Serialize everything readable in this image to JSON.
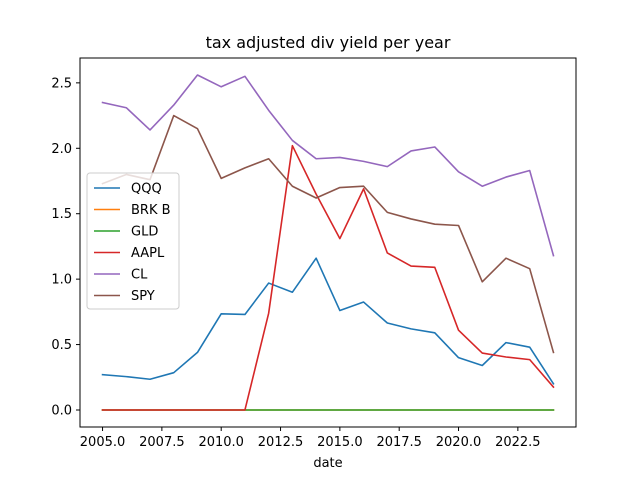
{
  "chart_data": {
    "type": "line",
    "title": "tax adjusted div yield per year",
    "xlabel": "date",
    "ylabel": "",
    "xlim": [
      2004.05,
      2024.95
    ],
    "ylim": [
      -0.13,
      2.69
    ],
    "xticks": [
      2005.0,
      2007.5,
      2010.0,
      2012.5,
      2015.0,
      2017.5,
      2020.0,
      2022.5
    ],
    "xtick_labels": [
      "2005.0",
      "2007.5",
      "2010.0",
      "2012.5",
      "2015.0",
      "2017.5",
      "2020.0",
      "2022.5"
    ],
    "yticks": [
      0.0,
      0.5,
      1.0,
      1.5,
      2.0,
      2.5
    ],
    "ytick_labels": [
      "0.0",
      "0.5",
      "1.0",
      "1.5",
      "2.0",
      "2.5"
    ],
    "grid": false,
    "legend_position": "center-left",
    "x": [
      2005,
      2006,
      2007,
      2008,
      2009,
      2010,
      2011,
      2012,
      2013,
      2014,
      2015,
      2016,
      2017,
      2018,
      2019,
      2020,
      2021,
      2022,
      2023,
      2024
    ],
    "series": [
      {
        "name": "QQQ",
        "color": "#1f77b4",
        "values": [
          0.27,
          0.255,
          0.235,
          0.285,
          0.44,
          0.735,
          0.73,
          0.97,
          0.9,
          1.16,
          0.76,
          0.825,
          0.665,
          0.62,
          0.59,
          0.4,
          0.34,
          0.515,
          0.48,
          0.2
        ]
      },
      {
        "name": "BRK B",
        "color": "#ff7f0e",
        "values": [
          0,
          0,
          0,
          0,
          0,
          0,
          0,
          0,
          0,
          0,
          0,
          0,
          0,
          0,
          0,
          0,
          0,
          0,
          0,
          0
        ]
      },
      {
        "name": "GLD",
        "color": "#2ca02c",
        "values": [
          0,
          0,
          0,
          0,
          0,
          0,
          0,
          0,
          0,
          0,
          0,
          0,
          0,
          0,
          0,
          0,
          0,
          0,
          0,
          0
        ]
      },
      {
        "name": "AAPL",
        "color": "#d62728",
        "values": [
          0,
          0,
          0,
          0,
          0,
          0,
          0,
          0.74,
          2.02,
          1.65,
          1.31,
          1.69,
          1.2,
          1.1,
          1.09,
          0.61,
          0.435,
          0.405,
          0.385,
          0.175
        ]
      },
      {
        "name": "CL",
        "color": "#9467bd",
        "values": [
          2.35,
          2.31,
          2.14,
          2.33,
          2.56,
          2.47,
          2.55,
          2.29,
          2.06,
          1.92,
          1.93,
          1.9,
          1.86,
          1.98,
          2.01,
          1.82,
          1.71,
          1.78,
          1.83,
          1.18
        ]
      },
      {
        "name": "SPY",
        "color": "#8c564b",
        "values": [
          1.73,
          1.8,
          1.76,
          2.25,
          2.15,
          1.77,
          1.85,
          1.92,
          1.71,
          1.62,
          1.7,
          1.71,
          1.51,
          1.46,
          1.42,
          1.41,
          0.98,
          1.16,
          1.08,
          0.44
        ]
      }
    ]
  }
}
